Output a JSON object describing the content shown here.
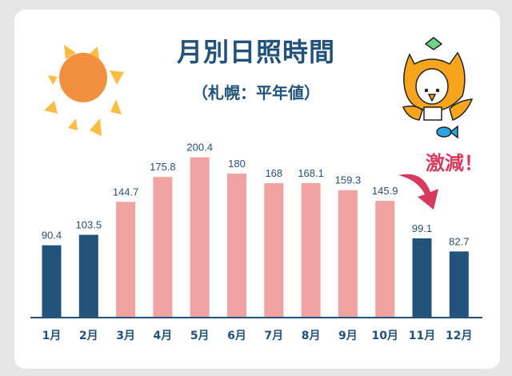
{
  "chart_data": {
    "type": "bar",
    "title": "月別日照時間",
    "subtitle": "（札幌：平年値）",
    "categories": [
      "1月",
      "2月",
      "3月",
      "4月",
      "5月",
      "6月",
      "7月",
      "8月",
      "9月",
      "10月",
      "11月",
      "12月"
    ],
    "values": [
      90.4,
      103.5,
      144.7,
      175.8,
      200.4,
      180,
      168,
      168.1,
      159.3,
      145.9,
      99.1,
      82.7
    ],
    "value_labels": [
      "90.4",
      "103.5",
      "144.7",
      "175.8",
      "200.4",
      "180",
      "168",
      "168.1",
      "159.3",
      "145.9",
      "99.1",
      "82.7"
    ],
    "highlight": [
      "dark",
      "dark",
      "pink",
      "pink",
      "pink",
      "pink",
      "pink",
      "pink",
      "pink",
      "pink",
      "dark",
      "dark"
    ],
    "colors": {
      "dark": "#23527a",
      "pink": "#f0a3a0",
      "text": "#22527a",
      "accent": "#d63a5e"
    },
    "annotation": "激減！",
    "grid": false,
    "xlabel": "",
    "ylabel": ""
  },
  "decor": {
    "sun_icon": "sun-icon",
    "mascot": "owl-mascot"
  }
}
